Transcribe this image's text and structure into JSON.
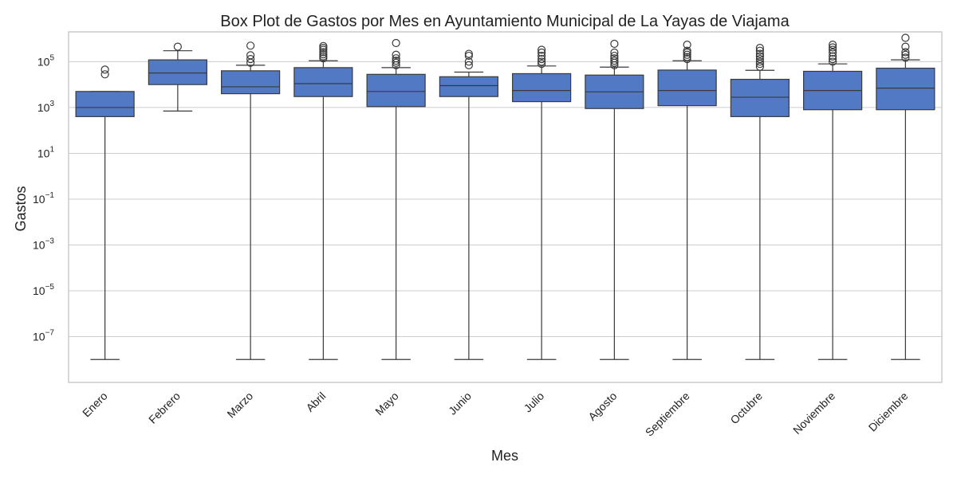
{
  "chart_data": {
    "type": "box",
    "title": "Box Plot de Gastos por Mes en Ayuntamiento Municipal de La Yayas de Viajama",
    "xlabel": "Mes",
    "ylabel": "Gastos",
    "y_scale": "log",
    "ylim": [
      1e-09,
      2000000.0
    ],
    "y_ticks": [
      {
        "value": 1e-07,
        "base": "10",
        "exp": "−7"
      },
      {
        "value": 1e-05,
        "base": "10",
        "exp": "−5"
      },
      {
        "value": 0.001,
        "base": "10",
        "exp": "−3"
      },
      {
        "value": 0.1,
        "base": "10",
        "exp": "−1"
      },
      {
        "value": 10,
        "base": "10",
        "exp": "1"
      },
      {
        "value": 1000,
        "base": "10",
        "exp": "3"
      },
      {
        "value": 100000,
        "base": "10",
        "exp": "5"
      }
    ],
    "grid": true,
    "box_color": "#5279c4",
    "line_color": "#3a3a3a",
    "categories": [
      "Enero",
      "Febrero",
      "Marzo",
      "Abril",
      "Mayo",
      "Junio",
      "Julio",
      "Agosto",
      "Septiembre",
      "Octubre",
      "Noviembre",
      "Diciembre"
    ],
    "boxes": [
      {
        "whislo": 1e-08,
        "q1": 400,
        "med": 1000,
        "q3": 5000,
        "whishi": 5000,
        "fliers": [
          28000,
          45000
        ]
      },
      {
        "whislo": 700,
        "q1": 10000,
        "med": 32000,
        "q3": 120000,
        "whishi": 300000,
        "fliers": [
          450000
        ]
      },
      {
        "whislo": 1e-08,
        "q1": 4000,
        "med": 8000,
        "q3": 40000,
        "whishi": 70000,
        "fliers": [
          90000,
          130000,
          190000,
          500000
        ]
      },
      {
        "whislo": 1e-08,
        "q1": 3000,
        "med": 11000,
        "q3": 55000,
        "whishi": 110000,
        "fliers": [
          140000,
          170000,
          210000,
          260000,
          330000,
          400000,
          480000
        ]
      },
      {
        "whislo": 1e-08,
        "q1": 1100,
        "med": 5000,
        "q3": 28000,
        "whishi": 55000,
        "fliers": [
          70000,
          90000,
          110000,
          140000,
          200000,
          650000
        ]
      },
      {
        "whislo": 1e-08,
        "q1": 3000,
        "med": 9000,
        "q3": 22000,
        "whishi": 35000,
        "fliers": [
          70000,
          100000,
          180000,
          220000
        ]
      },
      {
        "whislo": 1e-08,
        "q1": 1800,
        "med": 5500,
        "q3": 30000,
        "whishi": 65000,
        "fliers": [
          80000,
          100000,
          130000,
          180000,
          250000,
          330000
        ]
      },
      {
        "whislo": 1e-08,
        "q1": 900,
        "med": 4800,
        "q3": 26000,
        "whishi": 58000,
        "fliers": [
          70000,
          90000,
          110000,
          140000,
          180000,
          250000,
          600000
        ]
      },
      {
        "whislo": 1e-08,
        "q1": 1200,
        "med": 5500,
        "q3": 43000,
        "whishi": 110000,
        "fliers": [
          130000,
          160000,
          200000,
          250000,
          300000,
          550000
        ]
      },
      {
        "whislo": 1e-08,
        "q1": 400,
        "med": 2800,
        "q3": 17000,
        "whishi": 42000,
        "fliers": [
          60000,
          80000,
          100000,
          130000,
          170000,
          220000,
          300000,
          400000
        ]
      },
      {
        "whislo": 1e-08,
        "q1": 800,
        "med": 5500,
        "q3": 38000,
        "whishi": 80000,
        "fliers": [
          100000,
          130000,
          170000,
          250000,
          330000,
          420000,
          550000
        ]
      },
      {
        "whislo": 1e-08,
        "q1": 800,
        "med": 7000,
        "q3": 52000,
        "whishi": 120000,
        "fliers": [
          150000,
          200000,
          260000,
          450000,
          1100000
        ]
      }
    ]
  }
}
